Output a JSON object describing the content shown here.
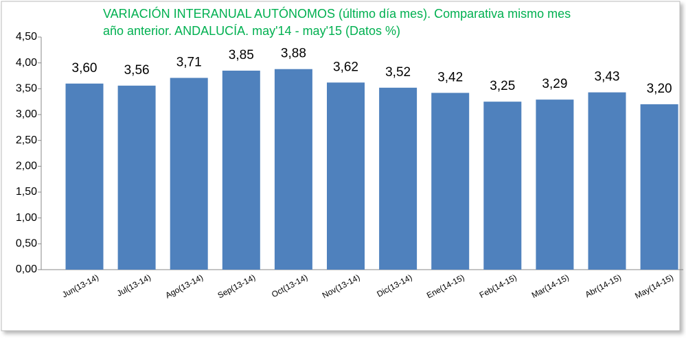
{
  "chart_data": {
    "type": "bar",
    "title": [
      "VARIACIÓN INTERANUAL AUTÓNOMOS (último día mes). Comparativa mismo mes",
      "año anterior. ANDALUCÍA. may'14 - may'15 (Datos %)"
    ],
    "categories": [
      "Jun(13-14)",
      "Jul(13-14)",
      "Ago(13-14)",
      "Sep(13-14)",
      "Oct(13-14)",
      "Nov(13-14)",
      "Dic(13-14)",
      "Ene(14-15)",
      "Feb(14-15)",
      "Mar(14-15)",
      "Abr(14-15)",
      "May(14-15)"
    ],
    "values": [
      3.6,
      3.56,
      3.71,
      3.85,
      3.88,
      3.62,
      3.52,
      3.42,
      3.25,
      3.29,
      3.43,
      3.2
    ],
    "value_labels": [
      "3,60",
      "3,56",
      "3,71",
      "3,85",
      "3,88",
      "3,62",
      "3,52",
      "3,42",
      "3,25",
      "3,29",
      "3,43",
      "3,20"
    ],
    "color": "#4f81bd",
    "ylim": [
      0,
      4.5
    ],
    "yticks": [
      {
        "value": 0,
        "label": "0,00"
      },
      {
        "value": 0.5,
        "label": "0,50"
      },
      {
        "value": 1,
        "label": "1,00"
      },
      {
        "value": 1.5,
        "label": "1,50"
      },
      {
        "value": 2,
        "label": "2,00"
      },
      {
        "value": 2.5,
        "label": "2,50"
      },
      {
        "value": 3,
        "label": "3,00"
      },
      {
        "value": 3.5,
        "label": "3,50"
      },
      {
        "value": 4,
        "label": "4,00"
      },
      {
        "value": 4.5,
        "label": "4,50"
      }
    ],
    "grid": false
  }
}
